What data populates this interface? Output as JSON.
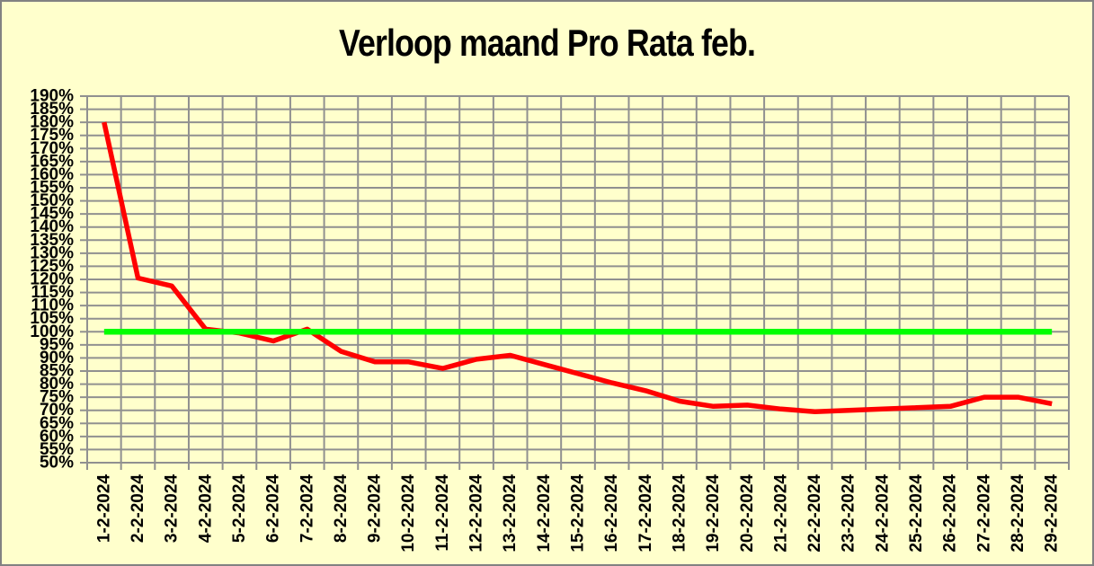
{
  "chart_data": {
    "type": "line",
    "title": "Verloop maand Pro Rata feb.",
    "categories": [
      "1-2-2024",
      "2-2-2024",
      "3-2-2024",
      "4-2-2024",
      "5-2-2024",
      "6-2-2024",
      "7-2-2024",
      "8-2-2024",
      "9-2-2024",
      "10-2-2024",
      "11-2-2024",
      "12-2-2024",
      "13-2-2024",
      "14-2-2024",
      "15-2-2024",
      "16-2-2024",
      "17-2-2024",
      "18-2-2024",
      "19-2-2024",
      "20-2-2024",
      "21-2-2024",
      "22-2-2024",
      "23-2-2024",
      "24-2-2024",
      "25-2-2024",
      "26-2-2024",
      "27-2-2024",
      "28-2-2024",
      "29-2-2024"
    ],
    "series": [
      {
        "id": "pro-rata-line",
        "color": "#ff0000",
        "values": [
          180,
          120.5,
          117.5,
          101,
          99.5,
          96.5,
          101,
          92.5,
          88.5,
          88.5,
          86,
          89.5,
          91,
          87.5,
          84,
          80.5,
          77.5,
          73.5,
          71.5,
          72,
          70.5,
          69.5,
          70,
          70.5,
          71,
          71.5,
          75,
          75,
          72.5
        ]
      },
      {
        "id": "reference-100pct-line",
        "color": "#00ff00",
        "constant": 100
      }
    ],
    "ylim": [
      50,
      190
    ],
    "y_tick_step": 5,
    "y_tick_suffix": "%",
    "y_tick_labels": [
      "190%",
      "185%",
      "180%",
      "175%",
      "170%",
      "165%",
      "160%",
      "155%",
      "150%",
      "145%",
      "140%",
      "135%",
      "130%",
      "125%",
      "120%",
      "115%",
      "110%",
      "105%",
      "100%",
      "95%",
      "90%",
      "85%",
      "80%",
      "75%",
      "70%",
      "65%",
      "60%",
      "55%",
      "50%"
    ],
    "grid": true,
    "legend": "none",
    "colors": {
      "background": "#ffffcc",
      "gridline": "#909090",
      "text": "#000000",
      "frame_border": "#828282"
    }
  }
}
